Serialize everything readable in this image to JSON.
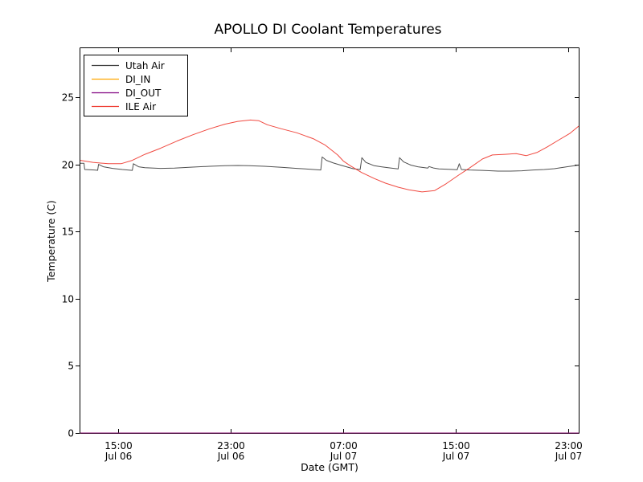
{
  "chart_data": {
    "type": "line",
    "title": "APOLLO DI Coolant Temperatures",
    "xlabel": "Date (GMT)",
    "ylabel": "Temperature (C)",
    "x_unit": "hours since Jul 06 12:00 GMT",
    "xlim": [
      0.31,
      35.74
    ],
    "ylim": [
      0,
      28.65
    ],
    "grid": false,
    "legend_position": "upper left",
    "yticks": [
      0,
      5,
      10,
      15,
      20,
      25
    ],
    "xticks": [
      {
        "t": 3,
        "time": "15:00",
        "date": "Jul 06"
      },
      {
        "t": 11,
        "time": "23:00",
        "date": "Jul 06"
      },
      {
        "t": 19,
        "time": "07:00",
        "date": "Jul 07"
      },
      {
        "t": 27,
        "time": "15:00",
        "date": "Jul 07"
      },
      {
        "t": 35,
        "time": "23:00",
        "date": "Jul 07"
      }
    ],
    "series": [
      {
        "name": "Utah Air",
        "color": "#3d3d3d",
        "points": [
          [
            0.31,
            20.08
          ],
          [
            0.57,
            20.08
          ],
          [
            0.62,
            19.62
          ],
          [
            1.3,
            19.58
          ],
          [
            1.54,
            19.56
          ],
          [
            1.6,
            20.0
          ],
          [
            1.95,
            19.82
          ],
          [
            2.6,
            19.7
          ],
          [
            3.3,
            19.62
          ],
          [
            4.0,
            19.55
          ],
          [
            4.08,
            20.05
          ],
          [
            4.45,
            19.82
          ],
          [
            4.9,
            19.75
          ],
          [
            6.0,
            19.7
          ],
          [
            7.0,
            19.72
          ],
          [
            8.3,
            19.8
          ],
          [
            9.5,
            19.86
          ],
          [
            10.6,
            19.9
          ],
          [
            11.5,
            19.92
          ],
          [
            12.3,
            19.9
          ],
          [
            13.4,
            19.86
          ],
          [
            14.6,
            19.78
          ],
          [
            15.7,
            19.7
          ],
          [
            16.6,
            19.64
          ],
          [
            17.4,
            19.58
          ],
          [
            17.5,
            20.55
          ],
          [
            17.8,
            20.3
          ],
          [
            18.3,
            20.1
          ],
          [
            18.9,
            19.92
          ],
          [
            19.7,
            19.68
          ],
          [
            20.2,
            19.62
          ],
          [
            20.32,
            20.5
          ],
          [
            20.6,
            20.15
          ],
          [
            21.2,
            19.9
          ],
          [
            21.7,
            19.82
          ],
          [
            22.3,
            19.74
          ],
          [
            22.9,
            19.66
          ],
          [
            23.0,
            20.5
          ],
          [
            23.3,
            20.18
          ],
          [
            23.8,
            19.95
          ],
          [
            24.3,
            19.82
          ],
          [
            25.0,
            19.72
          ],
          [
            25.1,
            19.84
          ],
          [
            25.45,
            19.72
          ],
          [
            25.8,
            19.66
          ],
          [
            26.5,
            19.63
          ],
          [
            27.1,
            19.6
          ],
          [
            27.25,
            20.05
          ],
          [
            27.4,
            19.62
          ],
          [
            28.0,
            19.58
          ],
          [
            28.9,
            19.55
          ],
          [
            30.0,
            19.5
          ],
          [
            30.9,
            19.5
          ],
          [
            31.7,
            19.52
          ],
          [
            32.5,
            19.58
          ],
          [
            33.3,
            19.62
          ],
          [
            34.0,
            19.68
          ],
          [
            34.9,
            19.82
          ],
          [
            35.74,
            19.95
          ]
        ]
      },
      {
        "name": "DI_IN",
        "color": "#ffa500",
        "points": [
          [
            0.31,
            0
          ],
          [
            35.74,
            0
          ]
        ]
      },
      {
        "name": "DI_OUT",
        "color": "#800080",
        "points": [
          [
            0.31,
            0
          ],
          [
            35.74,
            0
          ]
        ]
      },
      {
        "name": "ILE Air",
        "color": "#ee352b",
        "points": [
          [
            0.31,
            20.3
          ],
          [
            1.2,
            20.15
          ],
          [
            2.3,
            20.05
          ],
          [
            3.2,
            20.05
          ],
          [
            4.0,
            20.3
          ],
          [
            4.9,
            20.75
          ],
          [
            6.0,
            21.2
          ],
          [
            7.2,
            21.75
          ],
          [
            8.3,
            22.2
          ],
          [
            9.5,
            22.65
          ],
          [
            10.6,
            23.0
          ],
          [
            11.5,
            23.2
          ],
          [
            12.4,
            23.3
          ],
          [
            13.0,
            23.25
          ],
          [
            13.6,
            22.95
          ],
          [
            14.6,
            22.65
          ],
          [
            15.7,
            22.35
          ],
          [
            16.9,
            21.9
          ],
          [
            17.7,
            21.45
          ],
          [
            18.6,
            20.7
          ],
          [
            19.0,
            20.25
          ],
          [
            19.5,
            19.9
          ],
          [
            20.3,
            19.4
          ],
          [
            21.2,
            18.95
          ],
          [
            22.0,
            18.6
          ],
          [
            22.9,
            18.3
          ],
          [
            23.7,
            18.1
          ],
          [
            24.6,
            17.95
          ],
          [
            25.5,
            18.05
          ],
          [
            26.3,
            18.55
          ],
          [
            27.2,
            19.2
          ],
          [
            28.0,
            19.75
          ],
          [
            28.9,
            20.4
          ],
          [
            29.6,
            20.7
          ],
          [
            30.5,
            20.75
          ],
          [
            31.3,
            20.8
          ],
          [
            32.0,
            20.65
          ],
          [
            32.8,
            20.9
          ],
          [
            33.5,
            21.3
          ],
          [
            34.3,
            21.8
          ],
          [
            35.1,
            22.3
          ],
          [
            35.74,
            22.85
          ]
        ]
      }
    ]
  }
}
